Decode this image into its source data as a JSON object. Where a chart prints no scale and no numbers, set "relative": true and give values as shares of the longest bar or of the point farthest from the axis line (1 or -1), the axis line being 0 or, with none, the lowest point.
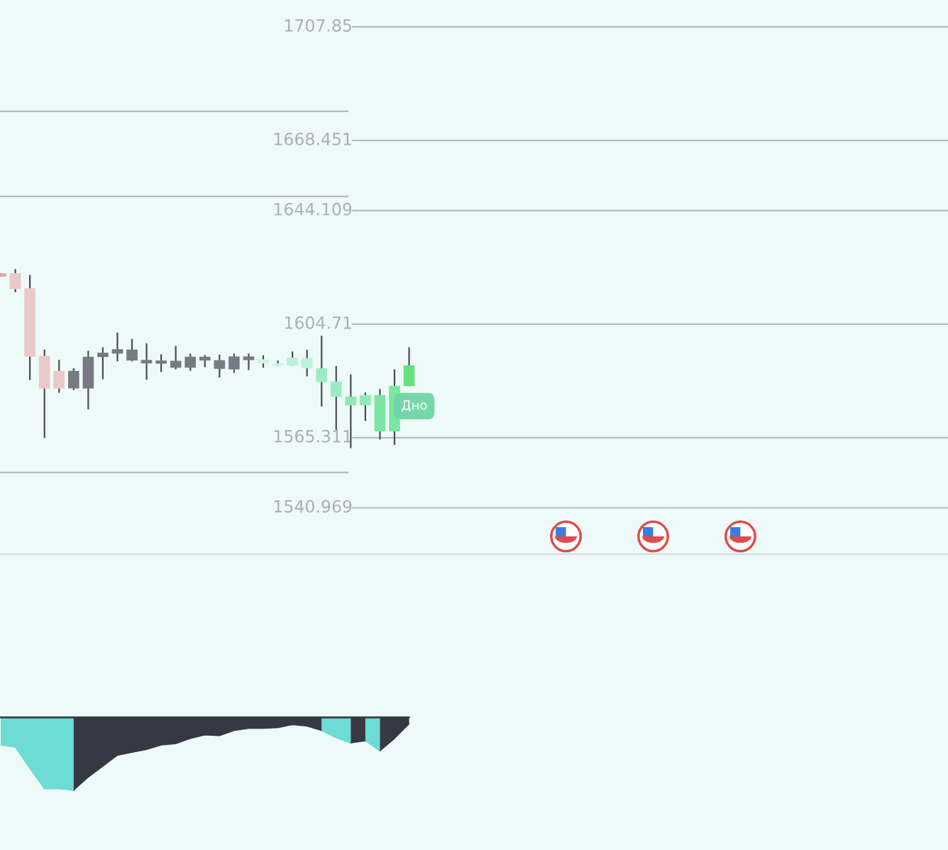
{
  "chart_data": [
    {
      "type": "candlestick",
      "categories": [
        null,
        null,
        null,
        null,
        null,
        null,
        null,
        null,
        null,
        null,
        null,
        null,
        null,
        null,
        null,
        null,
        null,
        null,
        null,
        null,
        null,
        null,
        null,
        null,
        null,
        null,
        null,
        null,
        null,
        null,
        null,
        null,
        null,
        null,
        null,
        null,
        null,
        null,
        null,
        null,
        null,
        null,
        null,
        null,
        null,
        null,
        null,
        null,
        null,
        null,
        null,
        null,
        null,
        null,
        null,
        null,
        null,
        null,
        null,
        null,
        null,
        null,
        null,
        null,
        null
      ],
      "ohlc": [
        [
          1622.3,
          1622.3,
          1621.2,
          1621.2
        ],
        [
          1622.4,
          1623.8,
          1615.8,
          1616.9
        ],
        [
          1617.2,
          1621.8,
          1585.3,
          1593.4
        ],
        [
          1593.7,
          1595.9,
          1565.2,
          1582.4
        ],
        [
          1588.5,
          1592.3,
          1580.9,
          1582.4
        ],
        [
          1582.4,
          1589.4,
          1581.8,
          1588.5
        ],
        [
          1582.4,
          1595.5,
          1575.1,
          1593.4
        ],
        [
          1593.3,
          1596.7,
          1585.6,
          1594.8
        ],
        [
          1594.5,
          1601.8,
          1591.8,
          1596.0
        ],
        [
          1592.1,
          1599.6,
          1591.8,
          1595.9
        ],
        [
          1591.1,
          1598.1,
          1585.4,
          1592.3
        ],
        [
          1591.0,
          1594.3,
          1588.1,
          1592.1
        ],
        [
          1589.6,
          1597.2,
          1589.0,
          1592.0
        ],
        [
          1589.6,
          1594.5,
          1588.5,
          1593.4
        ],
        [
          1592.1,
          1594.0,
          1589.8,
          1593.4
        ],
        [
          1589.2,
          1594.1,
          1586.2,
          1592.2
        ],
        [
          1589.0,
          1594.5,
          1587.8,
          1593.5
        ],
        [
          1592.2,
          1594.5,
          1588.8,
          1593.5
        ],
        [
          1591.1,
          1593.9,
          1589.6,
          1592.5
        ],
        [
          1590.3,
          1592.1,
          1590.2,
          1591.1
        ],
        [
          1590.3,
          1595.2,
          1590.3,
          1593.1
        ],
        [
          1589.4,
          1595.8,
          1586.6,
          1592.9
        ],
        [
          1584.6,
          1600.7,
          1576.1,
          1589.4
        ],
        [
          1579.5,
          1590.2,
          1568.0,
          1584.8
        ],
        [
          1576.5,
          1587.3,
          1561.7,
          1579.6
        ],
        [
          1576.5,
          1581.0,
          1571.1,
          1580.1
        ],
        [
          1567.5,
          1582.2,
          1564.7,
          1580.1
        ],
        [
          1567.5,
          1589.0,
          1562.8,
          1583.3
        ],
        [
          1583.2,
          1596.7,
          1583.2,
          1590.4
        ],
        null,
        null,
        null,
        null,
        null,
        null,
        null,
        null,
        null,
        null,
        null,
        null,
        null,
        null,
        null,
        null,
        null,
        null,
        null,
        null,
        null,
        null,
        null,
        null,
        null,
        null,
        null,
        null,
        null,
        null,
        null,
        null,
        null,
        null,
        null,
        null
      ],
      "colors": [
        "#ee9f9f",
        "#e9c9c9",
        "#e9c9c9",
        "#e9c9c9",
        "#e9c9c9",
        "#787a83",
        "#787a83",
        "#787a83",
        "#787a83",
        "#787a83",
        "#787a83",
        "#787a83",
        "#787a83",
        "#787a83",
        "#787a83",
        "#787a83",
        "#787a83",
        "#787a83",
        "#c9f6e2",
        "#c9f6e2",
        "#b9f3d8",
        "#b9f3d8",
        "#9bedc1",
        "#9bedc1",
        "#8eeab6",
        "#8eeab6",
        "#7ae6a2",
        "#7ae6a2",
        "#66e07f",
        null,
        null,
        null,
        null,
        null,
        null,
        null,
        null,
        null,
        null,
        null,
        null,
        null,
        null,
        null,
        null,
        null,
        null,
        null,
        null,
        null,
        null,
        null,
        null,
        null,
        null,
        null,
        null,
        null,
        null,
        null,
        null,
        null,
        null,
        null,
        null
      ],
      "ylim": [
        1524.9,
        1717.2
      ],
      "ref_lines": [
        {
          "axis": "y",
          "value": 1707.85,
          "label": "1707.85",
          "color": "#b4bcbe"
        },
        {
          "axis": "y",
          "value": 1678.55,
          "label": null,
          "color": "#b4bcbe"
        },
        {
          "axis": "y",
          "value": 1668.451,
          "label": "1668.451",
          "color": "#b4bcbe"
        },
        {
          "axis": "y",
          "value": 1649.0,
          "label": null,
          "color": "#b4bcbe"
        },
        {
          "axis": "y",
          "value": 1644.109,
          "label": "1644.109",
          "color": "#b4bcbe"
        },
        {
          "axis": "y",
          "value": 1604.71,
          "label": "1604.71",
          "color": "#b4bcbe"
        },
        {
          "axis": "y",
          "value": 1565.311,
          "label": "1565.311",
          "color": "#b4bcbe"
        },
        {
          "axis": "y",
          "value": 1553.25,
          "label": null,
          "color": "#b4bcbe"
        },
        {
          "axis": "y",
          "value": 1540.969,
          "label": "1540.969",
          "color": "#b4bcbe"
        }
      ],
      "annotations": [
        "Дно"
      ]
    },
    {
      "type": "area",
      "relative": true,
      "categories": [
        null,
        null,
        null,
        null,
        null,
        null,
        null,
        null,
        null,
        null,
        null,
        null,
        null,
        null,
        null,
        null,
        null,
        null,
        null,
        null,
        null,
        null,
        null,
        null,
        null,
        null,
        null,
        null,
        null
      ],
      "series": [
        {
          "color": "#6cdcd4",
          "values": [
            -0.38,
            -0.41,
            -0.7,
            -0.98,
            -0.98,
            -1,
            null,
            null,
            null,
            null,
            null,
            null,
            null,
            null,
            null,
            null,
            null,
            null,
            null,
            null,
            null,
            null,
            -0.18,
            -0.28,
            -0.35,
            null,
            null,
            null,
            null
          ]
        },
        {
          "color": "#6cdcd4",
          "values": [
            null,
            null,
            null,
            null,
            null,
            null,
            null,
            null,
            null,
            null,
            null,
            null,
            null,
            null,
            null,
            null,
            null,
            null,
            null,
            null,
            null,
            null,
            null,
            null,
            null,
            -0.32,
            -0.46,
            null,
            null
          ]
        },
        {
          "color": "#363944",
          "values": [
            null,
            null,
            null,
            null,
            null,
            -1,
            -0.82,
            -0.67,
            -0.52,
            -0.48,
            -0.44,
            -0.38,
            -0.36,
            -0.29,
            -0.24,
            -0.25,
            -0.18,
            -0.15,
            -0.15,
            -0.14,
            -0.1,
            -0.12,
            -0.18,
            null,
            null,
            null,
            -0.46,
            -0.29,
            -0.09
          ]
        },
        {
          "color": "#363944",
          "values": [
            null,
            null,
            null,
            null,
            null,
            null,
            null,
            null,
            null,
            null,
            null,
            null,
            null,
            null,
            null,
            null,
            null,
            null,
            null,
            null,
            null,
            null,
            null,
            null,
            -0.35,
            -0.32,
            null,
            null,
            null
          ]
        }
      ]
    }
  ]
}
